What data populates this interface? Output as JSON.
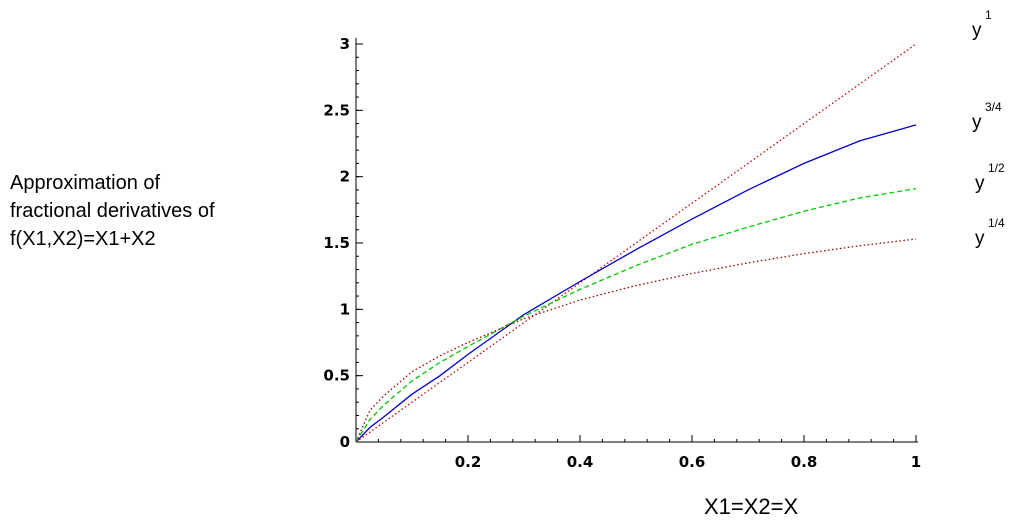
{
  "chart_data": {
    "type": "line",
    "title_lines": [
      "Approximation of",
      "fractional derivatives of",
      " f(X1,X2)=X1+X2"
    ],
    "xlabel": "X1=X2=X",
    "ylabel": "",
    "xlim": [
      0,
      1
    ],
    "ylim": [
      0,
      3
    ],
    "x_ticks": [
      "0.2",
      "0.4",
      "0.6",
      "0.8",
      "1"
    ],
    "y_ticks": [
      "0",
      "0.5",
      "1",
      "1.5",
      "2",
      "2.5",
      "3"
    ],
    "grid": false,
    "x": [
      0,
      0.025,
      0.05,
      0.1,
      0.15,
      0.2,
      0.3,
      0.4,
      0.5,
      0.6,
      0.7,
      0.8,
      0.9,
      1.0
    ],
    "series": [
      {
        "name": "y",
        "exponent": "1",
        "color": "#cc0000",
        "style": "dotted",
        "values": [
          0,
          0.075,
          0.15,
          0.3,
          0.45,
          0.6,
          0.9,
          1.2,
          1.5,
          1.8,
          2.1,
          2.4,
          2.7,
          3.0
        ]
      },
      {
        "name": "y",
        "exponent": "3/4",
        "color": "#0000cc",
        "style": "solid",
        "values": [
          0,
          0.11,
          0.19,
          0.36,
          0.5,
          0.66,
          0.96,
          1.21,
          1.45,
          1.68,
          1.9,
          2.1,
          2.27,
          2.39
        ]
      },
      {
        "name": "y",
        "exponent": "1/2",
        "color": "#00cc00",
        "style": "dashed",
        "values": [
          0,
          0.17,
          0.28,
          0.46,
          0.6,
          0.72,
          0.95,
          1.15,
          1.33,
          1.49,
          1.62,
          1.74,
          1.84,
          1.91
        ]
      },
      {
        "name": "y",
        "exponent": "1/4",
        "color": "#990000",
        "style": "dotted",
        "values": [
          0,
          0.24,
          0.35,
          0.53,
          0.65,
          0.75,
          0.93,
          1.07,
          1.18,
          1.27,
          1.35,
          1.42,
          1.48,
          1.53
        ]
      }
    ]
  }
}
